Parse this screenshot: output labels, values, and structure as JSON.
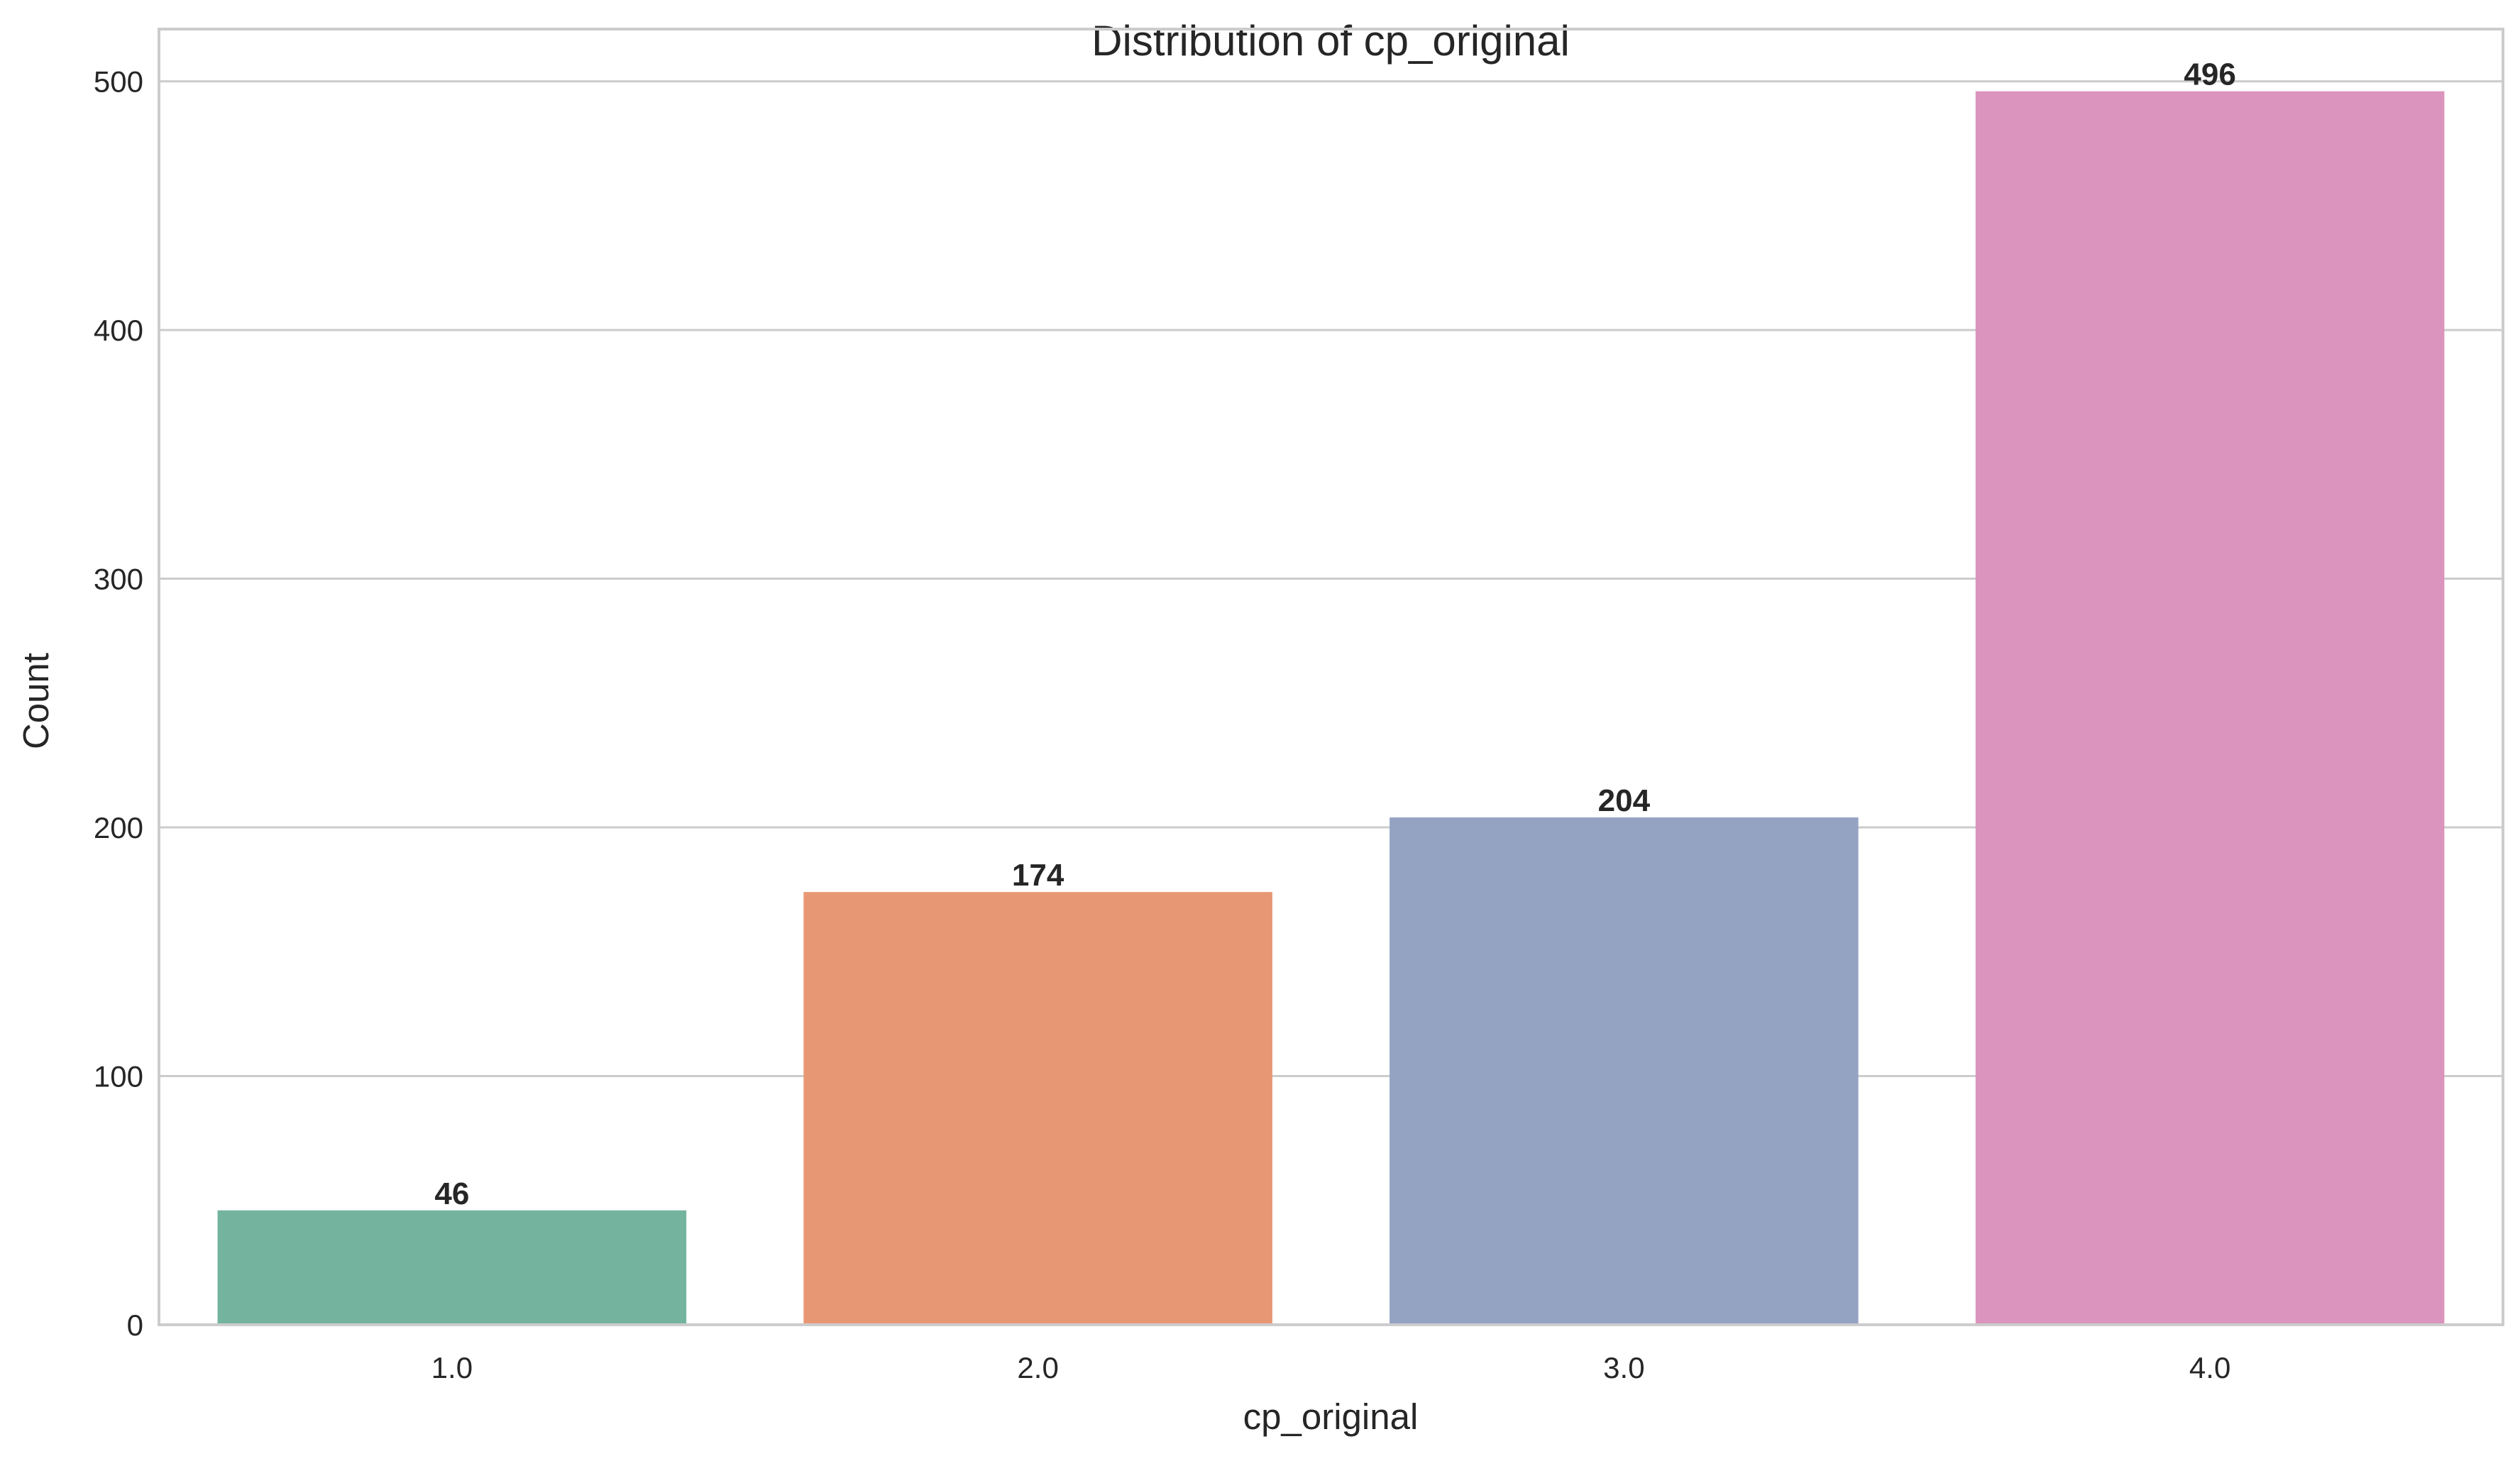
{
  "chart_data": {
    "type": "bar",
    "title": "Distribution of cp_original",
    "xlabel": "cp_original",
    "ylabel": "Count",
    "categories": [
      "1.0",
      "2.0",
      "3.0",
      "4.0"
    ],
    "values": [
      46,
      174,
      204,
      496
    ],
    "value_labels": [
      "46",
      "174",
      "204",
      "496"
    ],
    "colors": [
      "#74b49f",
      "#e89774",
      "#95a3c3",
      "#db94bd"
    ],
    "ylim": [
      0,
      521
    ],
    "yticks": [
      0,
      100,
      200,
      300,
      400,
      500
    ],
    "ytick_labels": [
      "0",
      "100",
      "200",
      "300",
      "400",
      "500"
    ],
    "grid": true,
    "grid_axis": "y",
    "legend": "none"
  },
  "colors": {
    "grid": "#cccccc",
    "spine": "#cccccc",
    "text": "#262626",
    "background": "#ffffff"
  }
}
